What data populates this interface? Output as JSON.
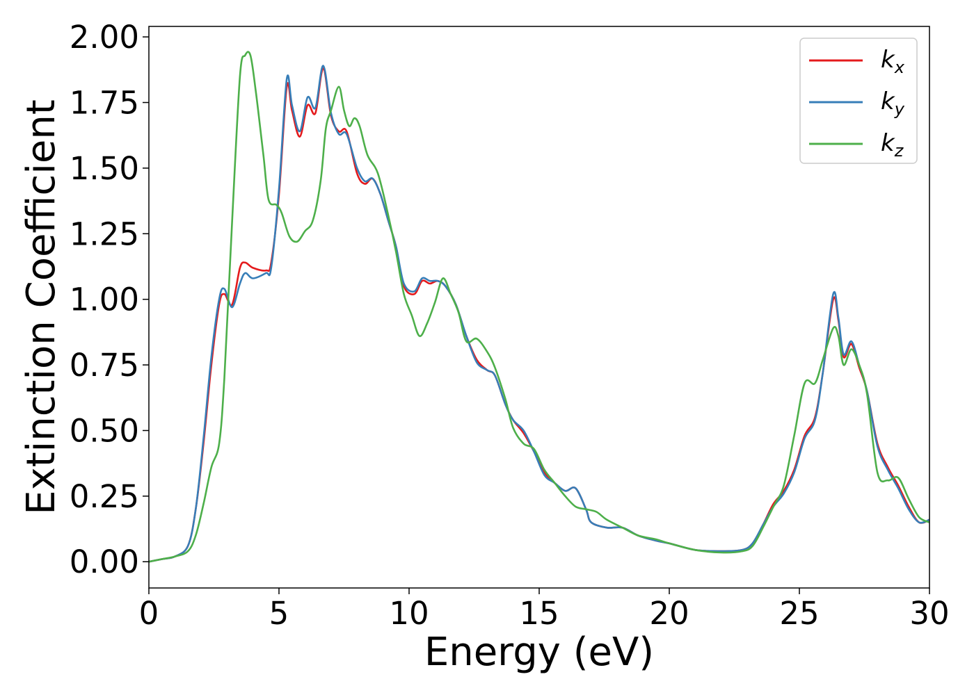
{
  "colors": {
    "kx": "#e41a1c",
    "ky": "#377eb8",
    "kz": "#4daf4a"
  },
  "chart_data": {
    "type": "line",
    "xlabel": "Energy (eV)",
    "ylabel": "Extinction Coefficient",
    "xlim": [
      0,
      30
    ],
    "ylim": [
      -0.1,
      2.04
    ],
    "x_ticks": [
      "0",
      "5",
      "10",
      "15",
      "20",
      "25",
      "30"
    ],
    "y_ticks": [
      "0.00",
      "0.25",
      "0.50",
      "0.75",
      "1.00",
      "1.25",
      "1.50",
      "1.75",
      "2.00"
    ],
    "grid": false,
    "legend_position": "top-right",
    "series": [
      {
        "name": "k",
        "subscript": "x",
        "color": "#e41a1c",
        "points": [
          [
            0,
            0.0
          ],
          [
            0.5,
            0.01
          ],
          [
            1.0,
            0.02
          ],
          [
            1.5,
            0.06
          ],
          [
            1.8,
            0.2
          ],
          [
            2.1,
            0.45
          ],
          [
            2.4,
            0.75
          ],
          [
            2.7,
            0.98
          ],
          [
            2.9,
            1.02
          ],
          [
            3.2,
            0.98
          ],
          [
            3.5,
            1.12
          ],
          [
            3.7,
            1.14
          ],
          [
            4.0,
            1.12
          ],
          [
            4.5,
            1.11
          ],
          [
            4.7,
            1.14
          ],
          [
            5.0,
            1.4
          ],
          [
            5.3,
            1.81
          ],
          [
            5.5,
            1.72
          ],
          [
            5.8,
            1.62
          ],
          [
            6.1,
            1.74
          ],
          [
            6.4,
            1.71
          ],
          [
            6.7,
            1.88
          ],
          [
            7.0,
            1.7
          ],
          [
            7.3,
            1.64
          ],
          [
            7.6,
            1.64
          ],
          [
            8.0,
            1.48
          ],
          [
            8.3,
            1.44
          ],
          [
            8.6,
            1.46
          ],
          [
            8.9,
            1.4
          ],
          [
            9.2,
            1.3
          ],
          [
            9.5,
            1.2
          ],
          [
            9.8,
            1.05
          ],
          [
            10.2,
            1.02
          ],
          [
            10.5,
            1.07
          ],
          [
            10.8,
            1.06
          ],
          [
            11.1,
            1.07
          ],
          [
            11.4,
            1.05
          ],
          [
            11.8,
            0.98
          ],
          [
            12.2,
            0.86
          ],
          [
            12.6,
            0.77
          ],
          [
            13.0,
            0.73
          ],
          [
            13.3,
            0.71
          ],
          [
            13.7,
            0.6
          ],
          [
            14.0,
            0.54
          ],
          [
            14.4,
            0.49
          ],
          [
            14.8,
            0.42
          ],
          [
            15.2,
            0.34
          ],
          [
            15.6,
            0.3
          ],
          [
            16.0,
            0.27
          ],
          [
            16.4,
            0.28
          ],
          [
            16.8,
            0.2
          ],
          [
            17.0,
            0.15
          ],
          [
            17.6,
            0.13
          ],
          [
            18.2,
            0.13
          ],
          [
            18.8,
            0.1
          ],
          [
            19.5,
            0.08
          ],
          [
            20.0,
            0.07
          ],
          [
            21.0,
            0.045
          ],
          [
            22.0,
            0.04
          ],
          [
            22.8,
            0.045
          ],
          [
            23.2,
            0.07
          ],
          [
            23.6,
            0.14
          ],
          [
            24.0,
            0.22
          ],
          [
            24.4,
            0.27
          ],
          [
            24.8,
            0.35
          ],
          [
            25.2,
            0.48
          ],
          [
            25.6,
            0.55
          ],
          [
            25.9,
            0.72
          ],
          [
            26.3,
            1.0
          ],
          [
            26.5,
            0.92
          ],
          [
            26.7,
            0.78
          ],
          [
            27.0,
            0.83
          ],
          [
            27.3,
            0.74
          ],
          [
            27.6,
            0.65
          ],
          [
            28.0,
            0.45
          ],
          [
            28.4,
            0.36
          ],
          [
            28.8,
            0.29
          ],
          [
            29.2,
            0.21
          ],
          [
            29.6,
            0.15
          ],
          [
            30.0,
            0.16
          ]
        ]
      },
      {
        "name": "k",
        "subscript": "y",
        "color": "#377eb8",
        "points": [
          [
            0,
            0.0
          ],
          [
            0.5,
            0.01
          ],
          [
            1.0,
            0.02
          ],
          [
            1.5,
            0.06
          ],
          [
            1.8,
            0.2
          ],
          [
            2.1,
            0.47
          ],
          [
            2.4,
            0.78
          ],
          [
            2.7,
            1.0
          ],
          [
            2.9,
            1.04
          ],
          [
            3.2,
            0.97
          ],
          [
            3.5,
            1.06
          ],
          [
            3.7,
            1.1
          ],
          [
            4.0,
            1.08
          ],
          [
            4.5,
            1.1
          ],
          [
            4.7,
            1.12
          ],
          [
            5.0,
            1.42
          ],
          [
            5.3,
            1.84
          ],
          [
            5.5,
            1.74
          ],
          [
            5.8,
            1.64
          ],
          [
            6.1,
            1.77
          ],
          [
            6.4,
            1.73
          ],
          [
            6.7,
            1.89
          ],
          [
            7.0,
            1.71
          ],
          [
            7.3,
            1.63
          ],
          [
            7.6,
            1.63
          ],
          [
            8.0,
            1.5
          ],
          [
            8.3,
            1.45
          ],
          [
            8.6,
            1.46
          ],
          [
            8.9,
            1.4
          ],
          [
            9.2,
            1.3
          ],
          [
            9.5,
            1.2
          ],
          [
            9.8,
            1.06
          ],
          [
            10.2,
            1.03
          ],
          [
            10.5,
            1.08
          ],
          [
            10.8,
            1.07
          ],
          [
            11.1,
            1.07
          ],
          [
            11.4,
            1.05
          ],
          [
            11.8,
            0.98
          ],
          [
            12.2,
            0.86
          ],
          [
            12.6,
            0.76
          ],
          [
            13.0,
            0.73
          ],
          [
            13.3,
            0.71
          ],
          [
            13.7,
            0.6
          ],
          [
            14.0,
            0.54
          ],
          [
            14.4,
            0.5
          ],
          [
            14.8,
            0.42
          ],
          [
            15.2,
            0.33
          ],
          [
            15.6,
            0.3
          ],
          [
            16.0,
            0.27
          ],
          [
            16.4,
            0.28
          ],
          [
            16.8,
            0.2
          ],
          [
            17.0,
            0.15
          ],
          [
            17.6,
            0.13
          ],
          [
            18.2,
            0.13
          ],
          [
            18.8,
            0.1
          ],
          [
            19.5,
            0.08
          ],
          [
            20.0,
            0.07
          ],
          [
            21.0,
            0.045
          ],
          [
            22.0,
            0.04
          ],
          [
            22.8,
            0.045
          ],
          [
            23.2,
            0.07
          ],
          [
            23.6,
            0.14
          ],
          [
            24.0,
            0.21
          ],
          [
            24.4,
            0.26
          ],
          [
            24.8,
            0.34
          ],
          [
            25.2,
            0.47
          ],
          [
            25.6,
            0.54
          ],
          [
            25.9,
            0.72
          ],
          [
            26.3,
            1.02
          ],
          [
            26.5,
            0.93
          ],
          [
            26.7,
            0.79
          ],
          [
            27.0,
            0.84
          ],
          [
            27.3,
            0.75
          ],
          [
            27.6,
            0.65
          ],
          [
            28.0,
            0.44
          ],
          [
            28.4,
            0.35
          ],
          [
            28.8,
            0.28
          ],
          [
            29.2,
            0.2
          ],
          [
            29.6,
            0.15
          ],
          [
            30.0,
            0.16
          ]
        ]
      },
      {
        "name": "k",
        "subscript": "z",
        "color": "#4daf4a",
        "points": [
          [
            0,
            0.0
          ],
          [
            0.5,
            0.01
          ],
          [
            1.0,
            0.02
          ],
          [
            1.5,
            0.04
          ],
          [
            1.8,
            0.1
          ],
          [
            2.1,
            0.22
          ],
          [
            2.4,
            0.36
          ],
          [
            2.7,
            0.45
          ],
          [
            2.9,
            0.7
          ],
          [
            3.2,
            1.3
          ],
          [
            3.5,
            1.85
          ],
          [
            3.7,
            1.93
          ],
          [
            3.9,
            1.93
          ],
          [
            4.1,
            1.8
          ],
          [
            4.4,
            1.55
          ],
          [
            4.6,
            1.38
          ],
          [
            4.9,
            1.36
          ],
          [
            5.1,
            1.33
          ],
          [
            5.4,
            1.24
          ],
          [
            5.7,
            1.22
          ],
          [
            6.0,
            1.26
          ],
          [
            6.3,
            1.3
          ],
          [
            6.6,
            1.45
          ],
          [
            6.8,
            1.65
          ],
          [
            7.0,
            1.72
          ],
          [
            7.3,
            1.81
          ],
          [
            7.5,
            1.72
          ],
          [
            7.7,
            1.66
          ],
          [
            7.9,
            1.69
          ],
          [
            8.1,
            1.66
          ],
          [
            8.4,
            1.55
          ],
          [
            8.8,
            1.48
          ],
          [
            9.2,
            1.32
          ],
          [
            9.5,
            1.18
          ],
          [
            9.8,
            1.02
          ],
          [
            10.1,
            0.94
          ],
          [
            10.4,
            0.86
          ],
          [
            10.7,
            0.91
          ],
          [
            11.0,
            0.99
          ],
          [
            11.3,
            1.08
          ],
          [
            11.6,
            1.02
          ],
          [
            11.9,
            0.95
          ],
          [
            12.2,
            0.84
          ],
          [
            12.6,
            0.85
          ],
          [
            13.0,
            0.8
          ],
          [
            13.3,
            0.74
          ],
          [
            13.7,
            0.62
          ],
          [
            14.0,
            0.51
          ],
          [
            14.4,
            0.45
          ],
          [
            14.8,
            0.43
          ],
          [
            15.2,
            0.35
          ],
          [
            15.6,
            0.3
          ],
          [
            16.0,
            0.25
          ],
          [
            16.4,
            0.21
          ],
          [
            16.8,
            0.2
          ],
          [
            17.2,
            0.19
          ],
          [
            17.6,
            0.16
          ],
          [
            18.2,
            0.13
          ],
          [
            18.8,
            0.1
          ],
          [
            19.5,
            0.085
          ],
          [
            20.0,
            0.07
          ],
          [
            21.0,
            0.045
          ],
          [
            22.0,
            0.035
          ],
          [
            22.8,
            0.04
          ],
          [
            23.2,
            0.06
          ],
          [
            23.6,
            0.13
          ],
          [
            24.0,
            0.21
          ],
          [
            24.4,
            0.29
          ],
          [
            24.8,
            0.48
          ],
          [
            25.2,
            0.68
          ],
          [
            25.6,
            0.68
          ],
          [
            25.9,
            0.77
          ],
          [
            26.3,
            0.89
          ],
          [
            26.5,
            0.86
          ],
          [
            26.7,
            0.75
          ],
          [
            27.0,
            0.81
          ],
          [
            27.3,
            0.75
          ],
          [
            27.6,
            0.64
          ],
          [
            28.0,
            0.34
          ],
          [
            28.4,
            0.31
          ],
          [
            28.8,
            0.32
          ],
          [
            29.2,
            0.24
          ],
          [
            29.6,
            0.17
          ],
          [
            30.0,
            0.15
          ]
        ]
      }
    ]
  }
}
